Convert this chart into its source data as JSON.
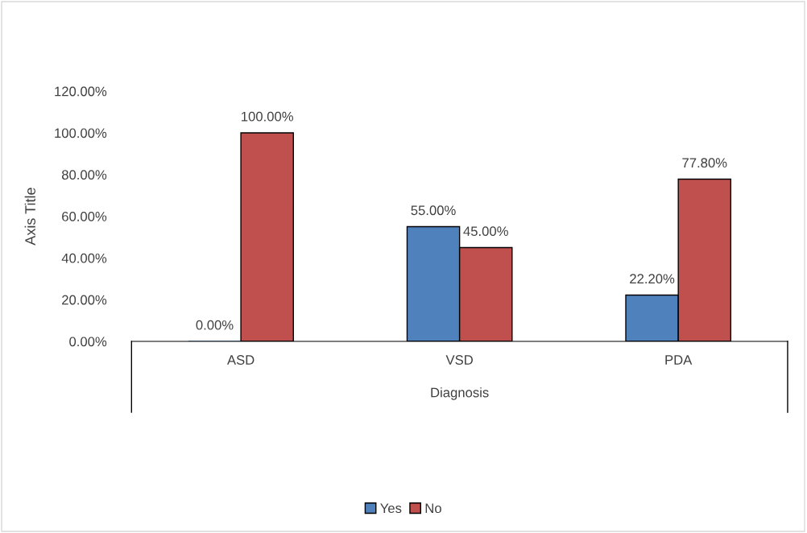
{
  "chart_data": {
    "type": "bar",
    "xlabel": "Diagnosis",
    "ylabel": "Axis Title",
    "categories": [
      "ASD",
      "VSD",
      "PDA"
    ],
    "series": [
      {
        "name": "Yes",
        "color": "#4f81bd",
        "values": [
          0,
          55,
          22.2
        ],
        "value_labels": [
          "0.00%",
          "55.00%",
          "22.20%"
        ]
      },
      {
        "name": "No",
        "color": "#c0504d",
        "values": [
          100,
          45,
          77.8
        ],
        "value_labels": [
          "100.00%",
          "45.00%",
          "77.80%"
        ]
      }
    ],
    "ylim": [
      0,
      120
    ],
    "yticks": [
      {
        "value": 0,
        "label": "0.00%"
      },
      {
        "value": 20,
        "label": "20.00%"
      },
      {
        "value": 40,
        "label": "40.00%"
      },
      {
        "value": 60,
        "label": "60.00%"
      },
      {
        "value": 80,
        "label": "80.00%"
      },
      {
        "value": 100,
        "label": "100.00%"
      },
      {
        "value": 120,
        "label": "120.00%"
      }
    ],
    "grid": false,
    "legend": "bottom"
  }
}
